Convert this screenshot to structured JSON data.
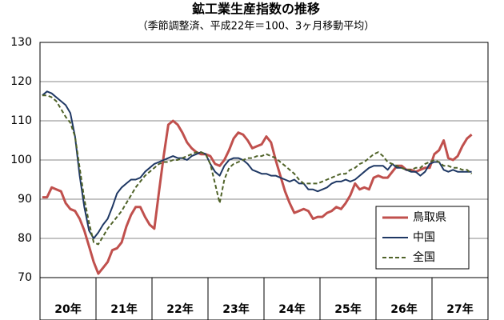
{
  "chart_data": {
    "type": "line",
    "title": "鉱工業生産指数の推移",
    "subtitle": "（季節調整済、平成22年＝100、3ヶ月移動平均）",
    "categories": [
      null,
      null,
      null,
      null,
      null,
      null,
      "20年",
      null,
      null,
      null,
      null,
      null,
      null,
      null,
      null,
      null,
      null,
      null,
      "21年",
      null,
      null,
      null,
      null,
      null,
      null,
      null,
      null,
      null,
      null,
      null,
      "22年",
      null,
      null,
      null,
      null,
      null,
      null,
      null,
      null,
      null,
      null,
      null,
      "23年",
      null,
      null,
      null,
      null,
      null,
      null,
      null,
      null,
      null,
      null,
      null,
      "24年",
      null,
      null,
      null,
      null,
      null,
      null,
      null,
      null,
      null,
      null,
      null,
      "25年",
      null,
      null,
      null,
      null,
      null,
      null,
      null,
      null,
      null,
      null,
      null,
      "26年",
      null,
      null,
      null,
      null,
      null,
      null,
      null,
      null,
      null,
      null,
      null,
      "27年",
      null,
      null
    ],
    "series": [
      {
        "name": "鳥取県",
        "color": "#c0504d",
        "style": "solid",
        "values": [
          90.5,
          90.5,
          93,
          92.5,
          92,
          89,
          87.5,
          87,
          85,
          82,
          78,
          74,
          71,
          72.5,
          74,
          77,
          77.5,
          79,
          83,
          86,
          88,
          88,
          85.5,
          83.5,
          82.5,
          92,
          101,
          109,
          110,
          109,
          107,
          104.5,
          103,
          102,
          101.5,
          101.5,
          101,
          99,
          98.5,
          100,
          102.5,
          105.5,
          107,
          106.5,
          105,
          103,
          103.5,
          104,
          106,
          104.5,
          100,
          96,
          92,
          89,
          86.5,
          87,
          87.5,
          87,
          85,
          85.5,
          85.5,
          86.5,
          87,
          88,
          87.5,
          89,
          91,
          94,
          92.5,
          93,
          92.5,
          95.5,
          96,
          95.5,
          95.5,
          97,
          98.5,
          98.5,
          97.5,
          97.5,
          97,
          97.5,
          98,
          98,
          101.5,
          102.5,
          105,
          100.5,
          100,
          101,
          103.5,
          105.5,
          106.5
        ]
      },
      {
        "name": "中国",
        "color": "#1f3864",
        "style": "solid",
        "values": [
          116.5,
          117.5,
          117,
          116,
          115,
          114,
          112,
          106,
          96,
          88,
          82,
          80,
          81.5,
          83.5,
          85,
          88,
          91.5,
          93,
          94,
          95,
          95,
          95.5,
          97,
          98,
          99,
          99.5,
          100,
          100.5,
          101,
          100.5,
          100.5,
          100,
          101,
          101.5,
          102,
          101.5,
          99,
          97,
          96,
          98.5,
          100,
          100.5,
          100.5,
          100,
          99,
          97.5,
          97,
          96.5,
          96.5,
          96,
          96,
          95.5,
          95,
          94.5,
          95,
          94,
          94,
          92.5,
          92.5,
          92,
          92.5,
          93,
          94,
          94.5,
          94.5,
          95,
          94.5,
          95,
          96,
          97,
          98,
          98.5,
          98.5,
          98.5,
          97.5,
          99,
          98,
          98,
          97.5,
          97,
          97,
          96,
          97,
          99,
          99.5,
          99.5,
          97.5,
          97,
          97.5,
          97,
          97,
          97,
          97
        ]
      },
      {
        "name": "全国",
        "color": "#4f6228",
        "style": "dashed",
        "values": [
          116.5,
          116.5,
          116,
          115,
          113,
          111,
          109.5,
          106,
          98,
          90,
          84,
          79,
          78.5,
          80.5,
          82.5,
          84,
          85.5,
          87,
          89,
          91,
          93,
          94.5,
          96,
          97,
          98,
          99,
          99.5,
          99.5,
          100,
          100,
          100.5,
          101,
          101.5,
          102,
          102,
          101.5,
          99,
          94,
          89,
          95,
          98,
          99,
          99.5,
          100,
          100.5,
          100.5,
          101,
          101,
          101.5,
          101,
          100.5,
          99.5,
          98.5,
          97.5,
          96.5,
          95,
          94,
          94,
          94,
          94,
          94.5,
          95,
          95.5,
          96,
          96.5,
          96.5,
          97.5,
          98,
          99,
          99.5,
          100.5,
          101.5,
          102,
          101,
          99.5,
          99,
          98.5,
          98,
          97.5,
          97.5,
          98,
          98,
          99,
          99.5,
          100,
          99.5,
          98.5,
          98.5,
          98,
          98,
          97.5,
          97.5,
          96.5
        ]
      }
    ],
    "ylim": [
      70,
      130
    ],
    "yticks": [
      70,
      80,
      90,
      100,
      110,
      120,
      130
    ],
    "grid": true,
    "legend": "lower right"
  }
}
